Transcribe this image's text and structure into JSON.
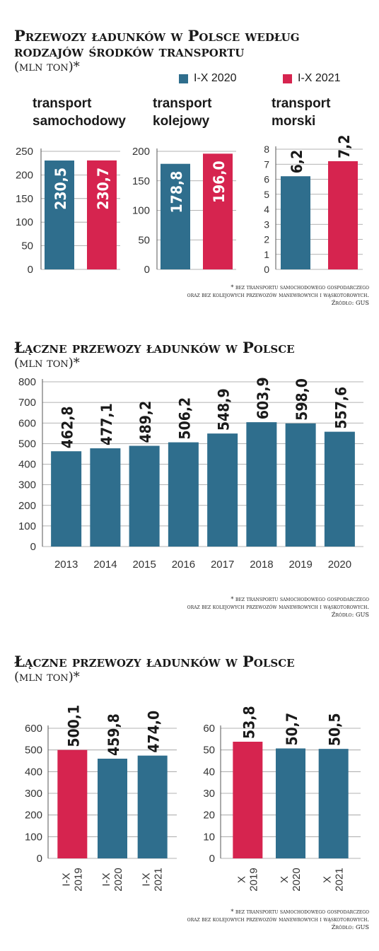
{
  "colors": {
    "blue": "#2f6e8d",
    "red": "#d6244f"
  },
  "section1": {
    "title_line1": "Przewozy ładunków w Polsce według",
    "title_line2": "rodzajów środków transportu",
    "unit": "(mln ton)*",
    "legend": [
      "I-X 2020",
      "I-X 2021"
    ],
    "categories": [
      [
        "transport",
        "samochodowy"
      ],
      [
        "transport",
        "kolejowy"
      ],
      [
        "transport",
        "morski"
      ]
    ],
    "footnote": [
      "* bez transportu samochodowego gospodarczego",
      "oraz bez kolejowych przewozów manewrowych i wąskotorowych.",
      "Źródło: GUS"
    ]
  },
  "section2": {
    "title": "Łączne przewozy ładunków w Polsce",
    "unit": "(mln ton)*",
    "footnote": [
      "* bez transportu samochodowego gospodarczego",
      "oraz bez kolejowych przewozów manewrowych i wąskotorowych.",
      "Źródło: GUS"
    ]
  },
  "section3": {
    "title": "Łączne przewozy ładunków w Polsce",
    "unit": "(mln ton)*",
    "footnote": [
      "* bez transportu samochodowego gospodarczego",
      "oraz bez kolejowych przewozów manewrowych i wąskotorowych.",
      "Źródło: GUS"
    ]
  },
  "chart_data": [
    {
      "type": "bar",
      "categories": [
        "I-X 2020",
        "I-X 2021"
      ],
      "values": [
        230.5,
        230.7
      ],
      "labels": [
        "230,5",
        "230,7"
      ],
      "colors": [
        "blue",
        "red"
      ],
      "ylim": [
        0,
        250
      ],
      "yticks": [
        "0",
        "50",
        "100",
        "150",
        "200",
        "250"
      ],
      "grid": true
    },
    {
      "type": "bar",
      "categories": [
        "I-X 2020",
        "I-X 2021"
      ],
      "values": [
        178.8,
        196.0
      ],
      "labels": [
        "178,8",
        "196,0"
      ],
      "colors": [
        "blue",
        "red"
      ],
      "ylim": [
        0,
        200
      ],
      "yticks": [
        "0",
        "50",
        "100",
        "150",
        "200"
      ],
      "grid": true
    },
    {
      "type": "bar",
      "categories": [
        "I-X 2020",
        "I-X 2021"
      ],
      "values": [
        6.2,
        7.2
      ],
      "labels": [
        "6,2",
        "7,2"
      ],
      "colors": [
        "blue",
        "red"
      ],
      "ylim": [
        0,
        8
      ],
      "yticks": [
        "0",
        "1",
        "2",
        "3",
        "4",
        "5",
        "6",
        "7",
        "8"
      ],
      "grid": true
    },
    {
      "type": "bar",
      "categories": [
        "2013",
        "2014",
        "2015",
        "2016",
        "2017",
        "2018",
        "2019",
        "2020"
      ],
      "values": [
        462.8,
        477.1,
        489.2,
        506.2,
        548.9,
        603.9,
        598.0,
        557.6
      ],
      "labels": [
        "462,8",
        "477,1",
        "489,2",
        "506,2",
        "548,9",
        "603,9",
        "598,0",
        "557,6"
      ],
      "ylim": [
        0,
        800
      ],
      "yticks": [
        "0",
        "100",
        "200",
        "300",
        "400",
        "500",
        "600",
        "700",
        "800"
      ],
      "grid": true
    },
    {
      "type": "bar",
      "categories": [
        [
          "I-X",
          "2019"
        ],
        [
          "I-X",
          "2020"
        ],
        [
          "I-X",
          "2021"
        ]
      ],
      "values": [
        500.1,
        459.8,
        474.0
      ],
      "labels": [
        "500,1",
        "459,8",
        "474,0"
      ],
      "colors": [
        "red",
        "blue",
        "blue"
      ],
      "ylim": [
        0,
        600
      ],
      "yticks": [
        "0",
        "100",
        "200",
        "300",
        "400",
        "500",
        "600"
      ],
      "grid": true
    },
    {
      "type": "bar",
      "categories": [
        [
          "X",
          "2019"
        ],
        [
          "X",
          "2020"
        ],
        [
          "X",
          "2021"
        ]
      ],
      "values": [
        53.8,
        50.7,
        50.5
      ],
      "labels": [
        "53,8",
        "50,7",
        "50,5"
      ],
      "colors": [
        "red",
        "blue",
        "blue"
      ],
      "ylim": [
        0,
        60
      ],
      "yticks": [
        "0",
        "10",
        "20",
        "30",
        "40",
        "50",
        "60"
      ],
      "grid": true
    }
  ]
}
